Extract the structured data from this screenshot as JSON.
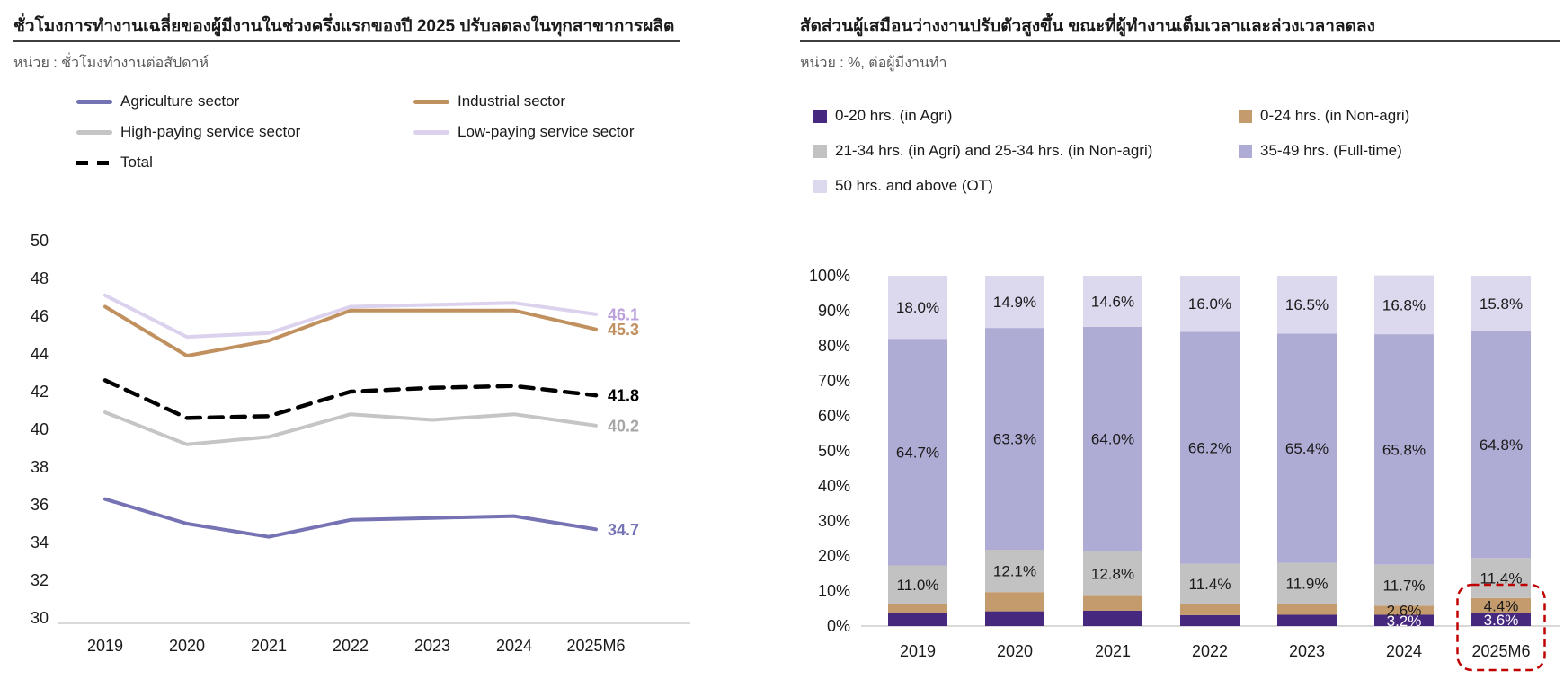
{
  "chart_data": [
    {
      "id": "avg-working-hours",
      "type": "line",
      "title": "ชั่วโมงการทำงานเฉลี่ยของผู้มีงานในช่วงครึ่งแรกของปี 2025 ปรับลดลงในทุกสาขาการผลิต",
      "unit": "หน่วย : ชั่วโมงทำงานต่อสัปดาห์",
      "categories": [
        "2019",
        "2020",
        "2021",
        "2022",
        "2023",
        "2024",
        "2025M6"
      ],
      "ylim": [
        30,
        50
      ],
      "yticks": [
        "50",
        "48",
        "46",
        "44",
        "42",
        "40",
        "38",
        "36",
        "34",
        "32",
        "30"
      ],
      "grid": false,
      "legend_position": "top-left",
      "series": [
        {
          "name": "Agriculture sector",
          "color": "#7673B4",
          "style": "solid",
          "values": [
            36.3,
            35.0,
            34.3,
            35.2,
            35.3,
            35.4,
            34.7
          ],
          "end_label": "34.7",
          "end_label_color": "#7673B4"
        },
        {
          "name": "Industrial sector",
          "color": "#C0905F",
          "style": "solid",
          "values": [
            46.5,
            43.9,
            44.7,
            46.3,
            46.3,
            46.3,
            45.3
          ],
          "end_label": "45.3",
          "end_label_color": "#C0905F"
        },
        {
          "name": "High-paying service sector",
          "color": "#C6C5C5",
          "style": "solid",
          "values": [
            40.9,
            39.2,
            39.6,
            40.8,
            40.5,
            40.8,
            40.2
          ],
          "end_label": "40.2",
          "end_label_color": "#A6A6A6"
        },
        {
          "name": "Low-paying service sector",
          "color": "#DCD2EE",
          "style": "solid",
          "values": [
            47.1,
            44.9,
            45.1,
            46.5,
            46.6,
            46.7,
            46.1
          ],
          "end_label": "46.1",
          "end_label_color": "#BBA0DC"
        },
        {
          "name": "Total",
          "color": "#000000",
          "style": "dashed",
          "values": [
            42.6,
            40.6,
            40.7,
            42.0,
            42.2,
            42.3,
            41.8
          ],
          "end_label": "41.8",
          "end_label_color": "#000000"
        }
      ]
    },
    {
      "id": "share-of-workers-by-hours",
      "type": "stacked_bar",
      "title": "สัดส่วนผู้เสมือนว่างงานปรับตัวสูงขึ้น ขณะที่ผู้ทำงานเต็มเวลาและล่วงเวลาลดลง",
      "unit": "หน่วย : %, ต่อผู้มีงานทำ",
      "categories": [
        "2019",
        "2020",
        "2021",
        "2022",
        "2023",
        "2024",
        "2025M6"
      ],
      "ylim": [
        0,
        100
      ],
      "yticks": [
        "100%",
        "90%",
        "80%",
        "70%",
        "60%",
        "50%",
        "40%",
        "30%",
        "20%",
        "10%",
        "0%"
      ],
      "grid": false,
      "legend_position": "top-left",
      "series": [
        {
          "name": "0-20 hrs. (in Agri)",
          "color": "#46287F",
          "label_color": "#FFFFFF",
          "values": [
            3.8,
            4.2,
            4.4,
            3.1,
            3.2,
            3.2,
            3.6
          ],
          "labels": [
            "",
            "",
            "",
            "",
            "",
            "3.2%",
            "3.6%"
          ]
        },
        {
          "name": "0-24 hrs. (in Non-agri)",
          "color": "#C49B6D",
          "label_color": "#1A1A1A",
          "values": [
            2.5,
            5.5,
            4.2,
            3.3,
            3.0,
            2.6,
            4.4
          ],
          "labels": [
            "",
            "",
            "",
            "",
            "",
            "2.6%",
            "4.4%"
          ]
        },
        {
          "name": "21-34 hrs. (in Agri) and 25-34 hrs. (in Non-agri)",
          "color": "#C3C2C2",
          "label_color": "#1A1A1A",
          "values": [
            11.0,
            12.1,
            12.8,
            11.4,
            11.9,
            11.7,
            11.4
          ],
          "labels": [
            "11.0%",
            "12.1%",
            "12.8%",
            "11.4%",
            "11.9%",
            "11.7%",
            "11.4%"
          ]
        },
        {
          "name": "35-49 hrs. (Full-time)",
          "color": "#AEACD5",
          "label_color": "#1A1A1A",
          "values": [
            64.7,
            63.3,
            64.0,
            66.2,
            65.4,
            65.8,
            64.8
          ],
          "labels": [
            "64.7%",
            "63.3%",
            "64.0%",
            "66.2%",
            "65.4%",
            "65.8%",
            "64.8%"
          ]
        },
        {
          "name": "50 hrs. and above (OT)",
          "color": "#DCD9EE",
          "label_color": "#1A1A1A",
          "values": [
            18.0,
            14.9,
            14.6,
            16.0,
            16.5,
            16.8,
            15.8
          ],
          "labels": [
            "18.0%",
            "14.9%",
            "14.6%",
            "16.0%",
            "16.5%",
            "16.8%",
            "15.8%"
          ]
        }
      ],
      "highlight": {
        "category": "2025M6",
        "color": "#C00000"
      }
    }
  ]
}
